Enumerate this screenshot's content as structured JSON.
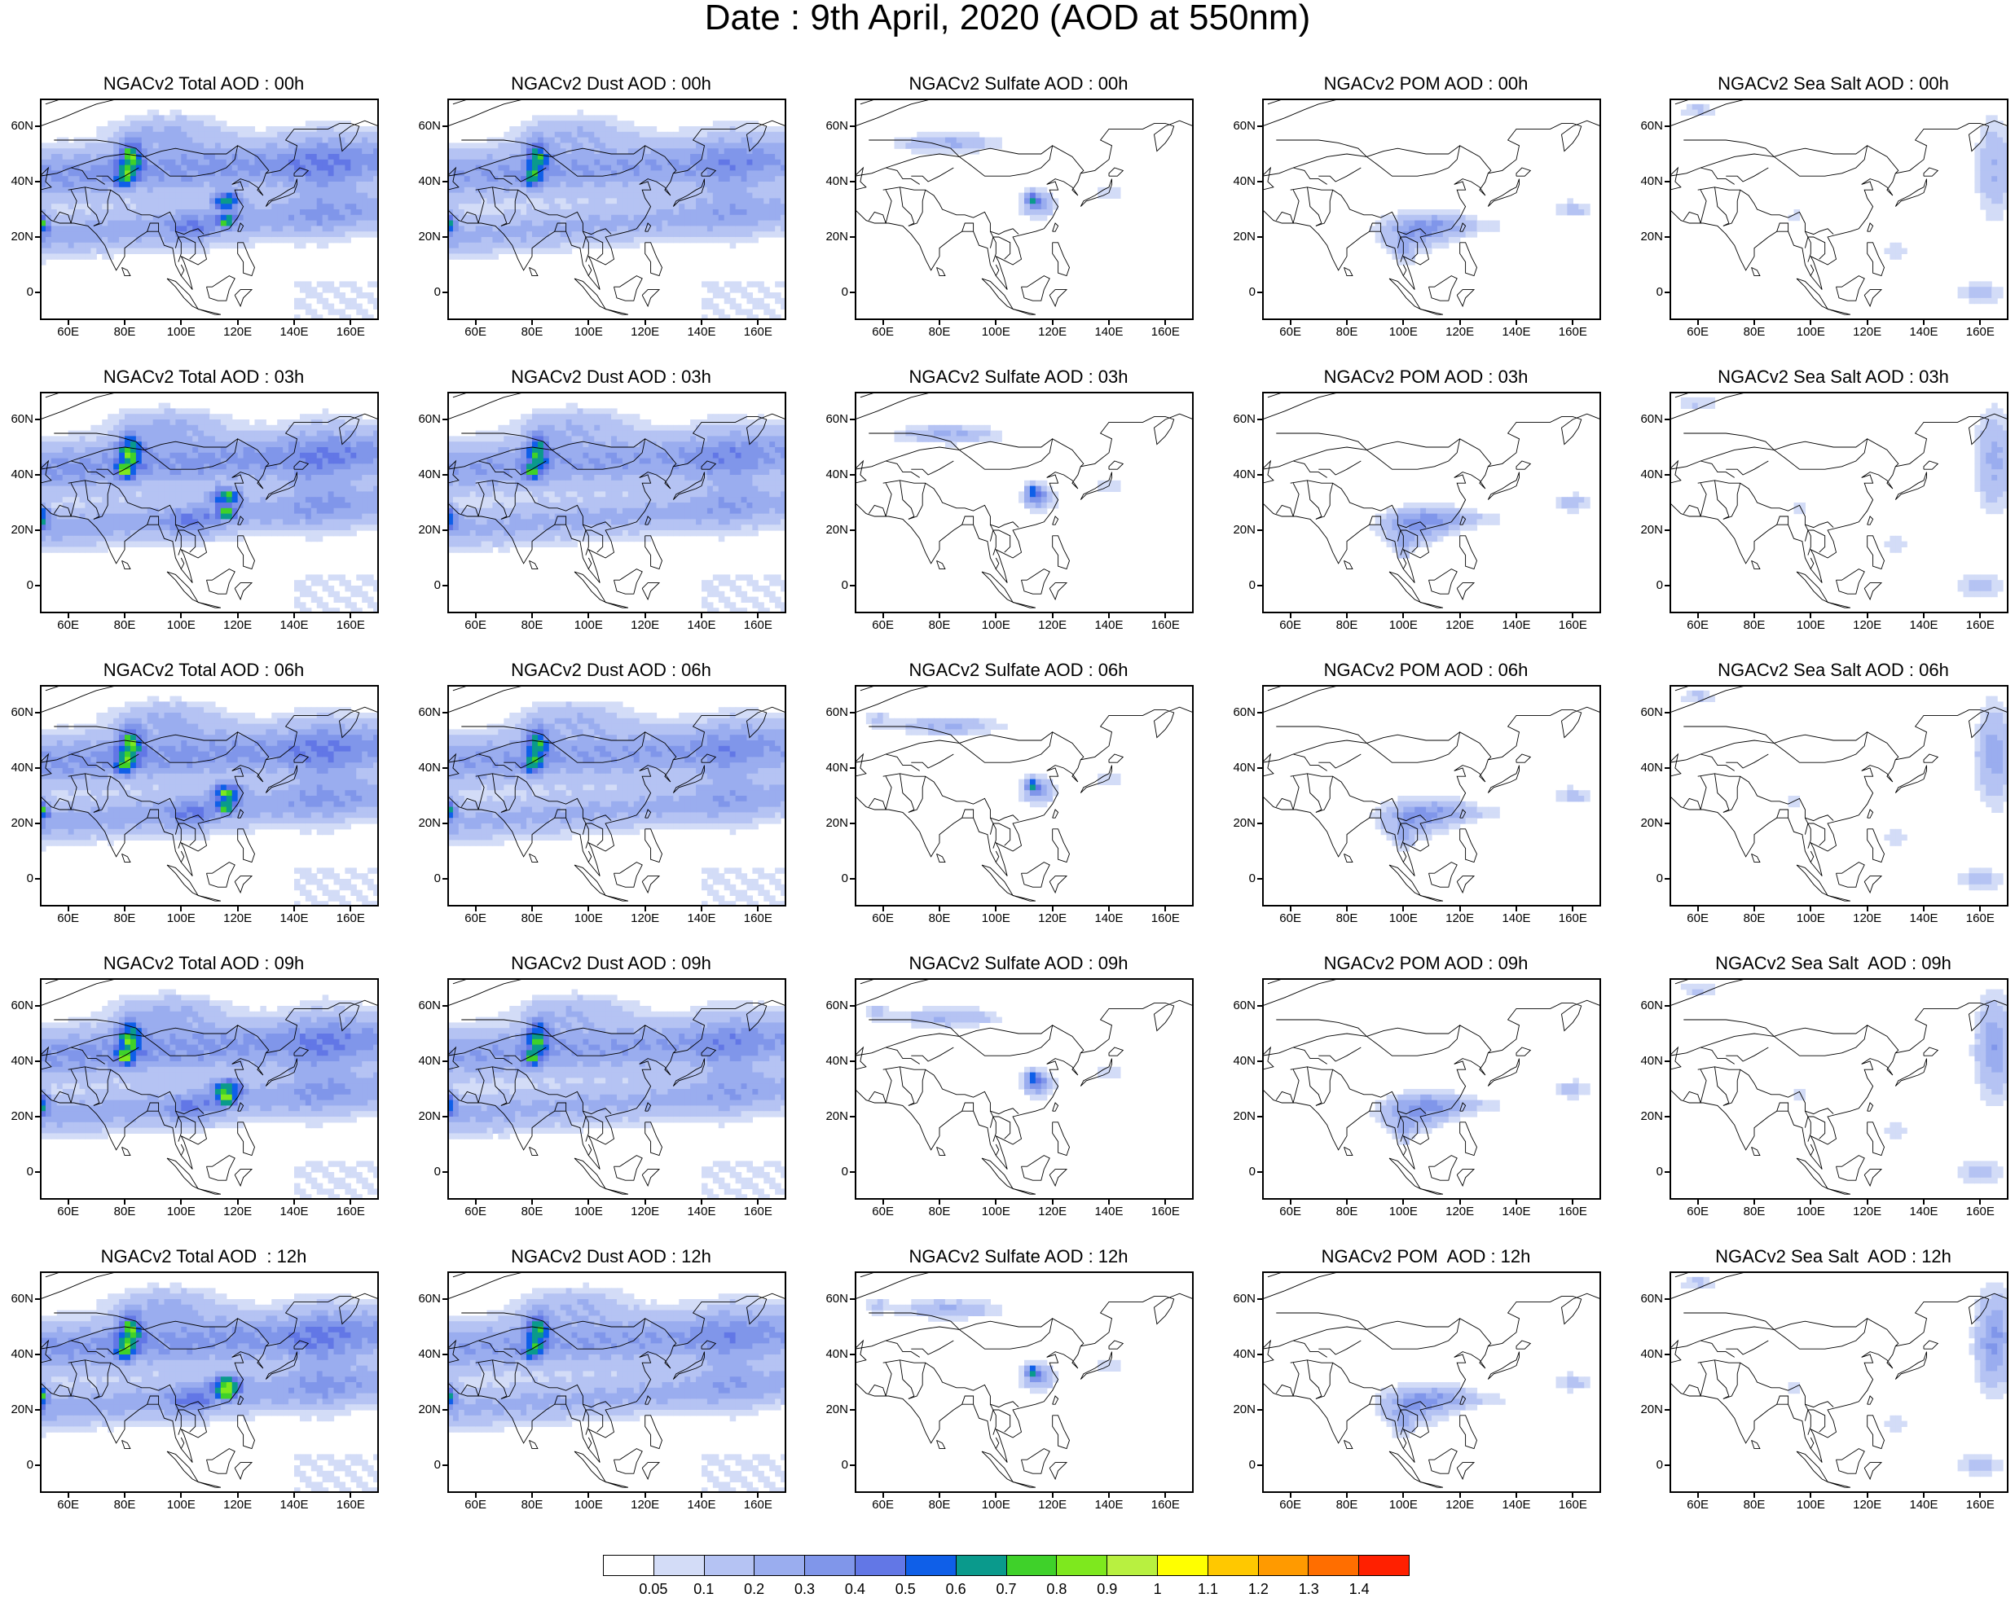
{
  "title": "Date : 9th April, 2020 (AOD at 550nm)",
  "axes": {
    "lat_ticks": [
      "60N",
      "40N",
      "20N",
      "0"
    ],
    "lat_values": [
      60,
      40,
      20,
      0
    ],
    "lon_ticks": [
      "60E",
      "80E",
      "100E",
      "120E",
      "140E",
      "160E"
    ],
    "lon_values": [
      60,
      80,
      100,
      120,
      140,
      160
    ],
    "lon_range": [
      50,
      170
    ],
    "lat_range": [
      -10,
      70
    ]
  },
  "panels": [
    {
      "title": "NGACv2 Total AOD : 00h",
      "species": "total",
      "hour": "00h"
    },
    {
      "title": "NGACv2 Dust AOD : 00h",
      "species": "dust",
      "hour": "00h"
    },
    {
      "title": "NGACv2 Sulfate AOD : 00h",
      "species": "sulfate",
      "hour": "00h"
    },
    {
      "title": "NGACv2 POM AOD : 00h",
      "species": "pom",
      "hour": "00h"
    },
    {
      "title": "NGACv2 Sea Salt AOD : 00h",
      "species": "seasalt",
      "hour": "00h"
    },
    {
      "title": "NGACv2 Total AOD : 03h",
      "species": "total",
      "hour": "03h"
    },
    {
      "title": "NGACv2 Dust AOD : 03h",
      "species": "dust",
      "hour": "03h"
    },
    {
      "title": "NGACv2 Sulfate AOD : 03h",
      "species": "sulfate",
      "hour": "03h"
    },
    {
      "title": "NGACv2 POM AOD : 03h",
      "species": "pom",
      "hour": "03h"
    },
    {
      "title": "NGACv2 Sea Salt AOD : 03h",
      "species": "seasalt",
      "hour": "03h"
    },
    {
      "title": "NGACv2 Total AOD : 06h",
      "species": "total",
      "hour": "06h"
    },
    {
      "title": "NGACv2 Dust AOD : 06h",
      "species": "dust",
      "hour": "06h"
    },
    {
      "title": "NGACv2 Sulfate AOD : 06h",
      "species": "sulfate",
      "hour": "06h"
    },
    {
      "title": "NGACv2 POM AOD : 06h",
      "species": "pom",
      "hour": "06h"
    },
    {
      "title": "NGACv2 Sea Salt AOD : 06h",
      "species": "seasalt",
      "hour": "06h"
    },
    {
      "title": "NGACv2 Total AOD : 09h",
      "species": "total",
      "hour": "09h"
    },
    {
      "title": "NGACv2 Dust AOD : 09h",
      "species": "dust",
      "hour": "09h"
    },
    {
      "title": "NGACv2 Sulfate AOD : 09h",
      "species": "sulfate",
      "hour": "09h"
    },
    {
      "title": "NGACv2 POM AOD : 09h",
      "species": "pom",
      "hour": "09h"
    },
    {
      "title": "NGACv2 Sea Salt  AOD : 09h",
      "species": "seasalt",
      "hour": "09h"
    },
    {
      "title": "NGACv2 Total AOD  : 12h",
      "species": "total",
      "hour": "12h"
    },
    {
      "title": "NGACv2 Dust AOD : 12h",
      "species": "dust",
      "hour": "12h"
    },
    {
      "title": "NGACv2 Sulfate AOD : 12h",
      "species": "sulfate",
      "hour": "12h"
    },
    {
      "title": "NGACv2 POM  AOD : 12h",
      "species": "pom",
      "hour": "12h"
    },
    {
      "title": "NGACv2 Sea Salt  AOD : 12h",
      "species": "seasalt",
      "hour": "12h"
    }
  ],
  "colorbar": {
    "labels": [
      "0.05",
      "0.1",
      "0.2",
      "0.3",
      "0.4",
      "0.5",
      "0.6",
      "0.7",
      "0.8",
      "0.9",
      "1",
      "1.1",
      "1.2",
      "1.3",
      "1.4"
    ],
    "colors": [
      "#ffffff",
      "#d3dcf7",
      "#b5c3f3",
      "#9aadef",
      "#8096ea",
      "#6277e6",
      "#0f5fe8",
      "#0a9a8c",
      "#3fd12a",
      "#7ee81e",
      "#b8f040",
      "#ffff00",
      "#ffc800",
      "#ff9a00",
      "#ff6e00",
      "#ff2000"
    ]
  }
}
